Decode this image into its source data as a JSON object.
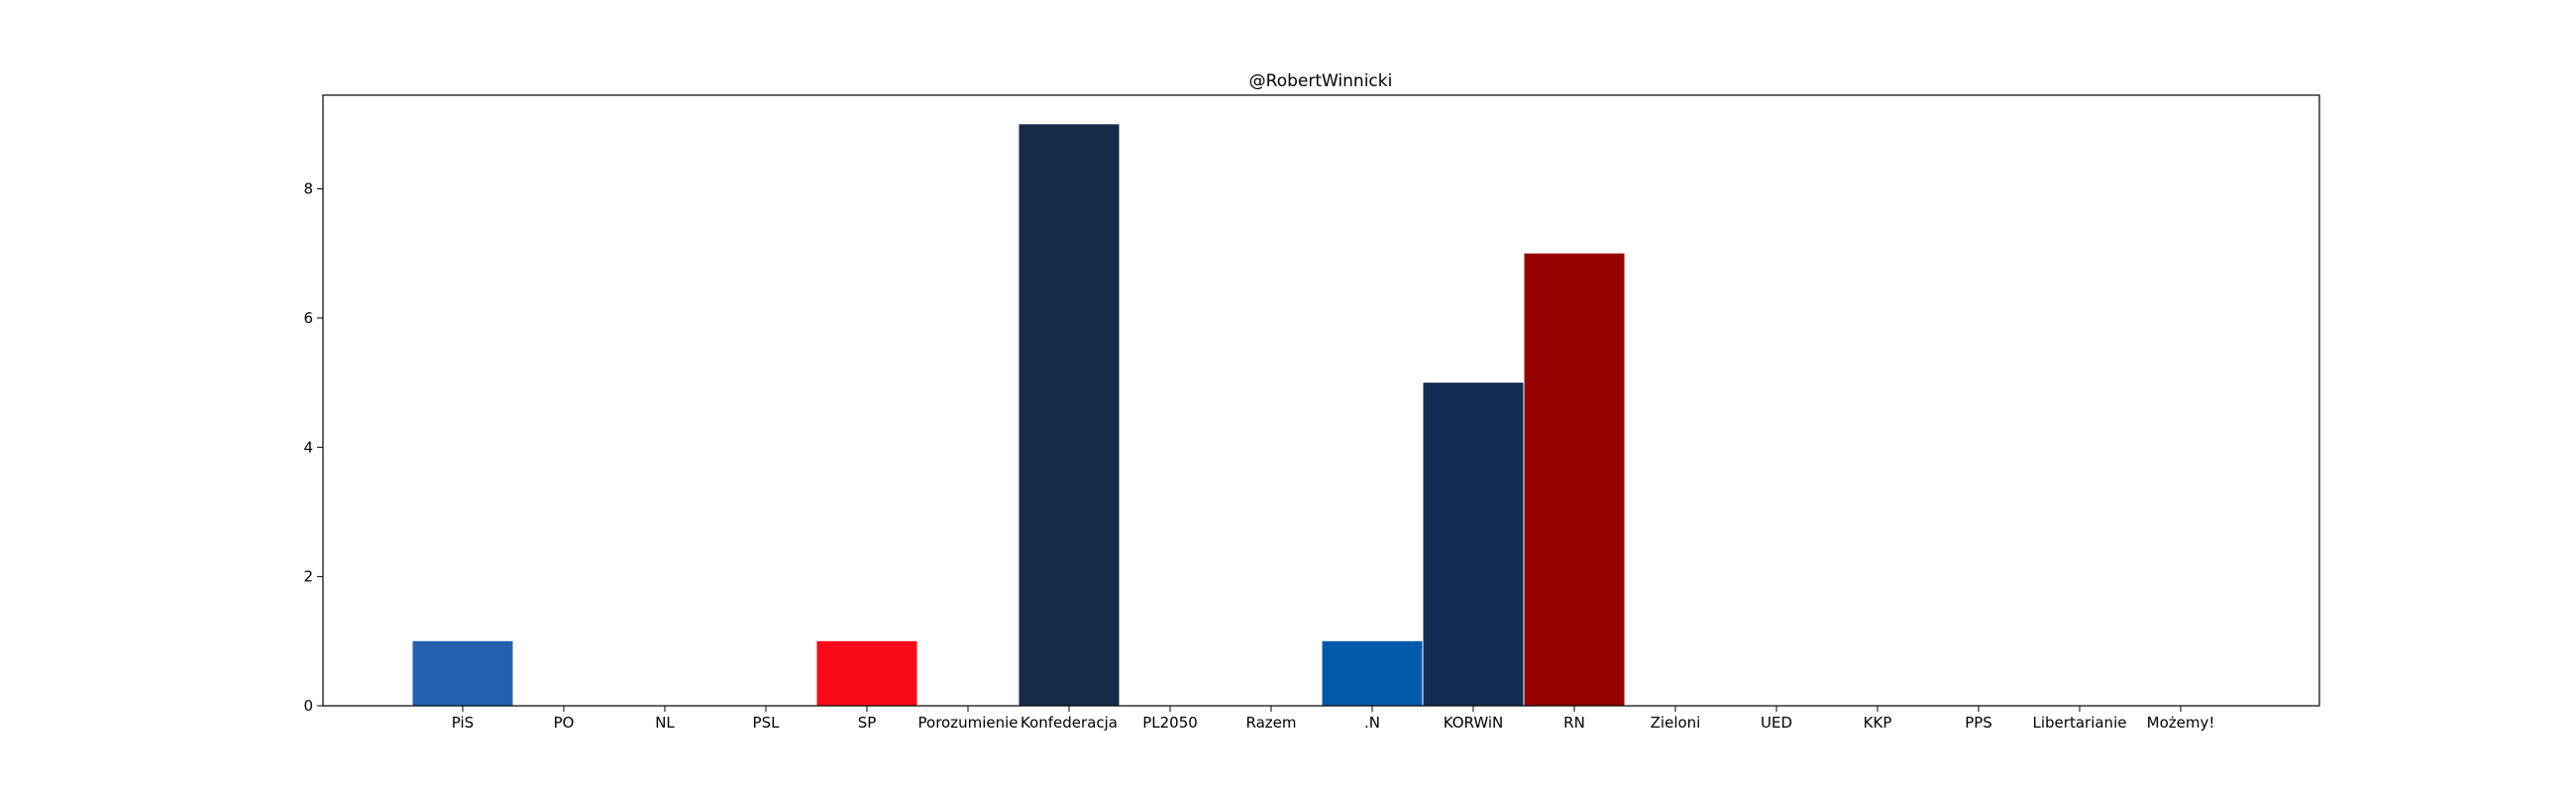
{
  "chart_data": {
    "type": "bar",
    "title": "@RobertWinnicki",
    "xlabel": "",
    "ylabel": "",
    "categories": [
      "PiS",
      "PO",
      "NL",
      "PSL",
      "SP",
      "Porozumienie",
      "Konfederacja",
      "PL2050",
      "Razem",
      ".N",
      "KORWiN",
      "RN",
      "Zieloni",
      "UED",
      "KKP",
      "PPS",
      "Libertarianie",
      "Możemy!"
    ],
    "values": [
      1,
      0,
      0,
      0,
      1,
      0,
      9,
      0,
      0,
      1,
      5,
      7,
      0,
      0,
      0,
      0,
      0,
      0
    ],
    "colors": [
      "#2462b1",
      "#cccccc",
      "#cccccc",
      "#cccccc",
      "#fa0a18",
      "#cccccc",
      "#152b48",
      "#cccccc",
      "#cccccc",
      "#005aaa",
      "#102c52",
      "#940202",
      "#cccccc",
      "#cccccc",
      "#cccccc",
      "#cccccc",
      "#cccccc",
      "#cccccc"
    ],
    "yticks": [
      "0",
      "2",
      "4",
      "6",
      "8"
    ],
    "ylim": [
      0,
      9.45
    ],
    "grid": false,
    "legend": "none"
  }
}
